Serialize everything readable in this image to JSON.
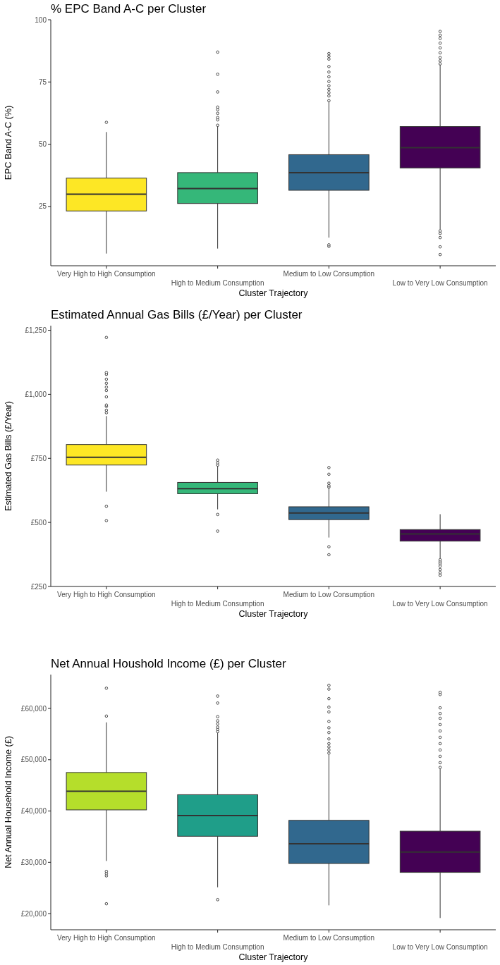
{
  "chart_data": [
    {
      "type": "box",
      "title": "% EPC Band A-C per Cluster",
      "xlabel": "Cluster Trajectory",
      "ylabel": "EPC Band A-C (%)",
      "categories": [
        "Very High to High Consumption",
        "High to Medium Consumption",
        "Medium to Low Consumption",
        "Low to Very Low Consumption"
      ],
      "colors": [
        "#fde725",
        "#35b779",
        "#31688e",
        "#440154"
      ],
      "ylim": [
        1.2,
        100
      ],
      "yticks": [
        25,
        50,
        75,
        100
      ],
      "grid": false,
      "boxes": [
        {
          "low": 6.1,
          "q1": 23.2,
          "median": 29.9,
          "q3": 36.4,
          "high": 54.9,
          "outliers": [
            58.8
          ]
        },
        {
          "low": 8.1,
          "q1": 26.2,
          "median": 32.2,
          "q3": 38.6,
          "high": 57.5,
          "outliers": [
            57.6,
            59.8,
            60.7,
            62.4,
            63.9,
            64.9,
            71.0,
            78.1,
            87.0
          ]
        },
        {
          "low": 12.5,
          "q1": 31.5,
          "median": 38.6,
          "q3": 45.8,
          "high": 67.9,
          "outliers": [
            9.0,
            9.6,
            67.5,
            69.4,
            70.7,
            72.0,
            73.5,
            75.2,
            77.1,
            79.0,
            81.2,
            84.2,
            85.3,
            86.4
          ]
        },
        {
          "low": 15.8,
          "q1": 40.5,
          "median": 48.6,
          "q3": 57.1,
          "high": 81.9,
          "outliers": [
            5.7,
            8.8,
            12.5,
            14.2,
            15.2,
            82.3,
            83.5,
            84.8,
            86.7,
            88.7,
            90.6,
            92.5,
            93.8,
            95.3
          ]
        }
      ]
    },
    {
      "type": "box",
      "title": "Estimated Annual Gas Bills (£/Year) per Cluster",
      "xlabel": "Cluster Trajectory",
      "ylabel": "Estimated Gas Bills (£/Year)",
      "categories": [
        "Very High to High Consumption",
        "High to Medium Consumption",
        "Medium to Low Consumption",
        "Low to Very Low Consumption"
      ],
      "colors": [
        "#fde725",
        "#35b779",
        "#31688e",
        "#440154"
      ],
      "ylim": [
        250,
        1268
      ],
      "yticks": [
        {
          "value": 250,
          "label": "£250"
        },
        {
          "value": 500,
          "label": "£500"
        },
        {
          "value": 750,
          "label": "£750"
        },
        {
          "value": 1000,
          "label": "£1,000"
        },
        {
          "value": 1250,
          "label": "£1,250"
        }
      ],
      "grid": false,
      "boxes": [
        {
          "low": 620,
          "q1": 724,
          "median": 754,
          "q3": 804,
          "high": 915,
          "outliers": [
            507,
            563,
            928,
            938,
            953,
            958,
            990,
            1015,
            1028,
            1043,
            1059,
            1078,
            1085,
            1222
          ]
        },
        {
          "low": 551,
          "q1": 612,
          "median": 632,
          "q3": 656,
          "high": 722,
          "outliers": [
            466,
            531,
            724,
            733,
            743
          ]
        },
        {
          "low": 441,
          "q1": 511,
          "median": 537,
          "q3": 561,
          "high": 633,
          "outliers": [
            374,
            405,
            638,
            643,
            653,
            688,
            714
          ]
        },
        {
          "low": 360,
          "q1": 427,
          "median": 455,
          "q3": 472,
          "high": 532,
          "outliers": [
            294,
            304,
            316,
            329,
            339,
            346,
            354
          ]
        }
      ]
    },
    {
      "type": "box",
      "title": "Net Annual Houshold Income (£) per Cluster",
      "xlabel": "Cluster Trajectory",
      "ylabel": "Net Annual Household Income (£)",
      "categories": [
        "Very High to High Consumption",
        "High to Medium Consumption",
        "Medium to Low Consumption",
        "Low to Very Low Consumption"
      ],
      "colors": [
        "#b5de2b",
        "#1f9e89",
        "#31688e",
        "#440154"
      ],
      "ylim": [
        16850,
        66600
      ],
      "yticks": [
        {
          "value": 20000,
          "label": "£20,000"
        },
        {
          "value": 30000,
          "label": "£30,000"
        },
        {
          "value": 40000,
          "label": "£40,000"
        },
        {
          "value": 50000,
          "label": "£50,000"
        },
        {
          "value": 60000,
          "label": "£60,000"
        }
      ],
      "grid": false,
      "boxes": [
        {
          "low": 30260,
          "q1": 40220,
          "median": 43860,
          "q3": 47510,
          "high": 57280,
          "outliers": [
            21920,
            27360,
            27790,
            28220,
            58510,
            63950
          ]
        },
        {
          "low": 25130,
          "q1": 35080,
          "median": 39100,
          "q3": 43180,
          "high": 55730,
          "outliers": [
            22720,
            55490,
            55920,
            56350,
            56970,
            57590,
            58390,
            61050,
            62410
          ]
        },
        {
          "low": 21610,
          "q1": 29770,
          "median": 33600,
          "q3": 38180,
          "high": 50970,
          "outliers": [
            51280,
            51900,
            52520,
            53140,
            54060,
            55300,
            56230,
            57460,
            59320,
            60250,
            61910,
            63770,
            64510
          ]
        },
        {
          "low": 19140,
          "q1": 28040,
          "median": 31990,
          "q3": 36070,
          "high": 48190,
          "outliers": [
            48500,
            49430,
            50660,
            51900,
            53140,
            54370,
            55610,
            56850,
            58080,
            59010,
            60120,
            62720,
            63150
          ]
        }
      ]
    }
  ]
}
